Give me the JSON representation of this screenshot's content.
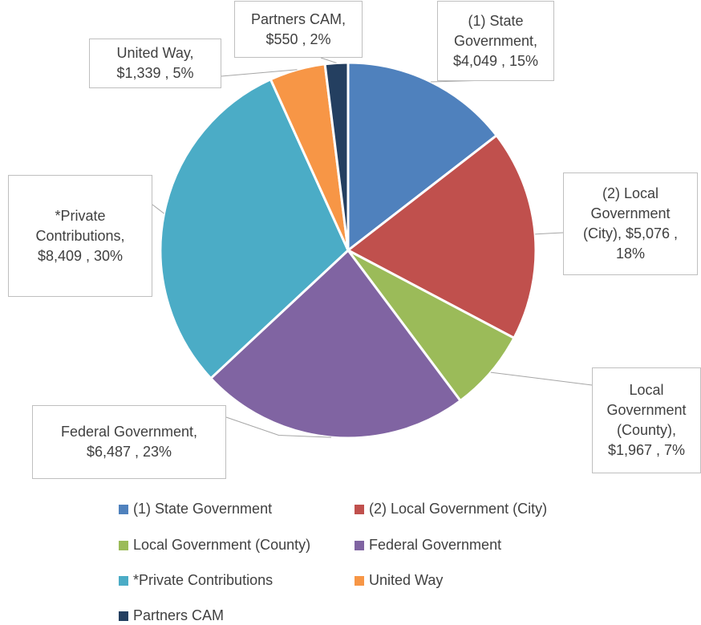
{
  "chart_data": {
    "type": "pie",
    "categories": [
      "(1) State Government",
      "(2) Local Government (City)",
      "Local Government (County)",
      "Federal Government",
      "*Private Contributions",
      "United Way",
      "Partners CAM"
    ],
    "values": [
      4049,
      5076,
      1967,
      6487,
      8409,
      1339,
      550
    ],
    "value_labels": [
      "(1) State Government, $4,049 , 15%",
      "(2) Local Government (City), $5,076 , 18%",
      "Local Government (County), $1,967 , 7%",
      "Federal Government, $6,487 , 23%",
      "*Private Contributions, $8,409 , 30%",
      "United Way, $1,339 , 5%",
      "Partners CAM, $550 , 2%"
    ],
    "colors": [
      "#4f81bd",
      "#c0504d",
      "#9bbb59",
      "#8064a2",
      "#4bacc6",
      "#f79646",
      "#243f60"
    ],
    "legend": "bottom"
  }
}
